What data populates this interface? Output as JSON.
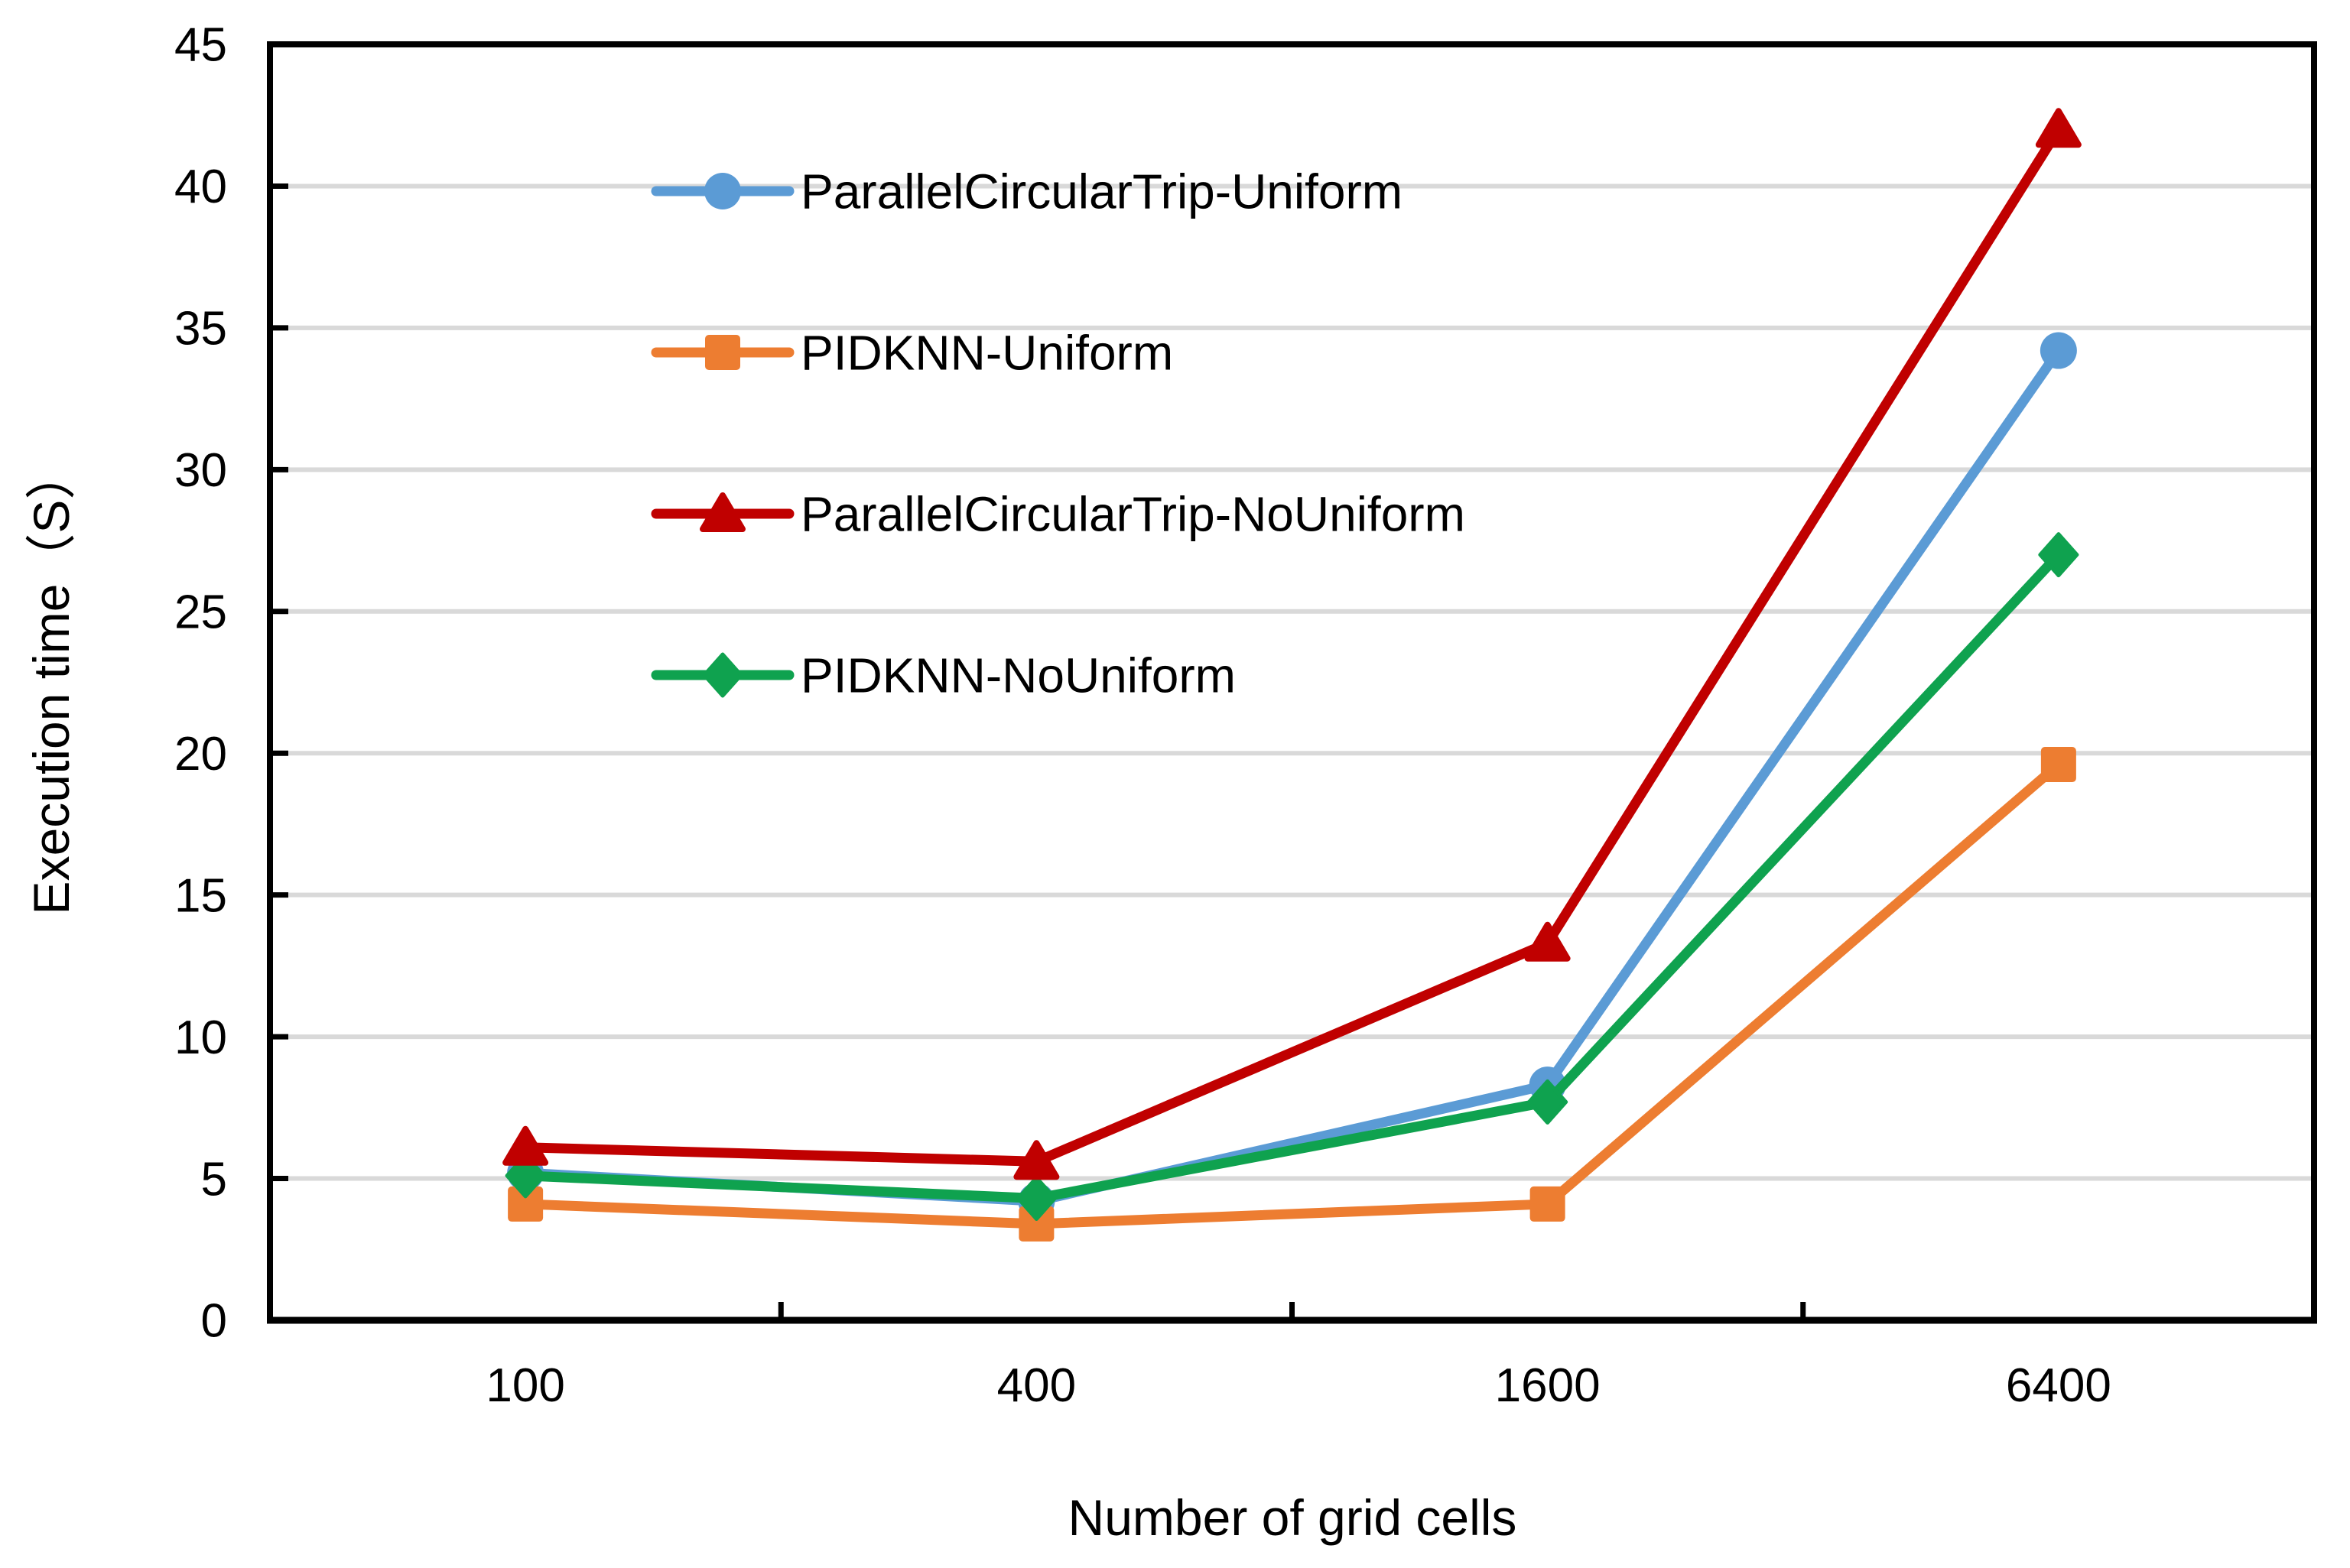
{
  "chart_data": {
    "type": "line",
    "title": "",
    "xlabel": "Number of grid cells",
    "ylabel": "Execution time（S）",
    "categories": [
      "100",
      "400",
      "1600",
      "6400"
    ],
    "series": [
      {
        "name": "ParallelCircularTrip-Uniform",
        "color": "#5B9BD5",
        "marker": "circle",
        "values": [
          5.2,
          4.2,
          8.3,
          34.2
        ]
      },
      {
        "name": "PIDKNN-Uniform",
        "color": "#ED7D31",
        "marker": "square",
        "values": [
          4.1,
          3.4,
          4.1,
          19.6
        ]
      },
      {
        "name": "ParallelCircularTrip-NoUniform",
        "color": "#C00000",
        "marker": "triangle",
        "values": [
          6.1,
          5.6,
          13.3,
          42.0
        ]
      },
      {
        "name": "PIDKNN-NoUniform",
        "color": "#0FA24F",
        "marker": "diamond",
        "values": [
          5.1,
          4.3,
          7.7,
          27.0
        ]
      }
    ],
    "ylim": [
      0,
      45
    ],
    "ytick_step": 5,
    "ytick_labels": [
      "0",
      "5",
      "10",
      "15",
      "20",
      "25",
      "30",
      "35",
      "40",
      "45"
    ],
    "grid": "horizontal",
    "grid_color": "#D9D9D9",
    "axis_color": "#000000",
    "legend_position": "inside-top-left",
    "legend_entries": [
      "ParallelCircularTrip-Uniform",
      "PIDKNN-Uniform",
      "ParallelCircularTrip-NoUniform",
      "PIDKNN-NoUniform"
    ],
    "draw_order": [
      0,
      1,
      3,
      2
    ]
  }
}
